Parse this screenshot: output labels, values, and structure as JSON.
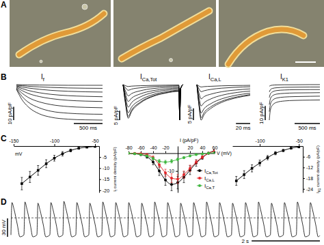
{
  "chart_data": [
    {
      "type": "image",
      "panel_label": "A"
    },
    {
      "type": "trace",
      "panel_label": "B",
      "title": [
        "I",
        {
          "sub": "f"
        }
      ],
      "color": "#000000",
      "tick_labels": false,
      "x": [
        0,
        100,
        200,
        400,
        600,
        900,
        1200,
        1500
      ],
      "series": [
        {
          "values": [
            -0.5,
            -0.6,
            -0.7,
            -0.8,
            -0.9,
            -1,
            -1,
            -1
          ]
        },
        {
          "values": [
            -1,
            -1.3,
            -1.7,
            -2.2,
            -2.6,
            -3,
            -3.2,
            -3.3
          ]
        },
        {
          "values": [
            -1.5,
            -2.3,
            -3,
            -4,
            -4.8,
            -5.5,
            -5.9,
            -6.1
          ]
        },
        {
          "values": [
            -2,
            -3.5,
            -4.8,
            -6.6,
            -7.8,
            -8.8,
            -9.3,
            -9.6
          ]
        },
        {
          "values": [
            -2.5,
            -5,
            -7,
            -9.5,
            -11,
            -12.3,
            -12.9,
            -13.2
          ]
        },
        {
          "values": [
            -3,
            -7,
            -10,
            -13.5,
            -15.5,
            -17,
            -17.6,
            -17.9
          ]
        },
        {
          "values": [
            -3.5,
            -9.5,
            -13.5,
            -18,
            -20.5,
            -22,
            -22.6,
            -22.8
          ]
        },
        {
          "values": [
            -4,
            -12,
            -17,
            -22.5,
            -25,
            -26.5,
            -27,
            -27.2
          ]
        }
      ],
      "scale_bars": {
        "y": {
          "value": 10,
          "label": "10 pA/pF"
        },
        "x": {
          "value": 500,
          "label": "500 ms"
        }
      }
    },
    {
      "type": "trace",
      "title": [
        "I",
        {
          "sub": "Ca,Tot"
        }
      ],
      "color": "#000000",
      "tick_labels": false,
      "x": [
        0,
        3,
        6,
        10,
        20,
        35,
        50,
        65,
        66,
        67,
        70
      ],
      "series": [
        {
          "values": [
            0,
            -0.6,
            -1,
            -0.8,
            -0.6,
            -0.4,
            -0.3,
            -0.2,
            -19,
            -2,
            0
          ]
        },
        {
          "values": [
            0,
            -1.8,
            -3,
            -2.4,
            -1.7,
            -1.1,
            -0.8,
            -0.6,
            -19,
            -2,
            0
          ]
        },
        {
          "values": [
            0,
            -3.6,
            -6,
            -4.8,
            -3.3,
            -2.1,
            -1.5,
            -1.2,
            -19,
            -2,
            0
          ]
        },
        {
          "values": [
            0,
            -5.4,
            -9,
            -7.2,
            -5,
            -3.2,
            -2.3,
            -1.8,
            -19,
            -2,
            0
          ]
        },
        {
          "values": [
            0,
            -7.2,
            -12,
            -9.6,
            -6.6,
            -4.2,
            -3,
            -2.4,
            -19,
            -2,
            0
          ]
        },
        {
          "values": [
            0,
            -9,
            -15,
            -12,
            -8.3,
            -5.3,
            -3.8,
            -3,
            -19,
            -2,
            0
          ]
        },
        {
          "values": [
            0,
            -10.2,
            -17,
            -13.6,
            -9.4,
            -6,
            -4.3,
            -3.4,
            -19,
            -2,
            0
          ]
        },
        {
          "values": [
            0,
            -10.8,
            -18,
            -14.4,
            -9.9,
            -6.3,
            -4.5,
            -3.6,
            -19,
            -2,
            0
          ]
        }
      ],
      "scale_bars": {
        "y": {
          "value": 5,
          "label": "5 pA/pF"
        }
      }
    },
    {
      "type": "trace",
      "title": [
        "I",
        {
          "sub": "Ca,L"
        }
      ],
      "color": "#000000",
      "tick_labels": false,
      "x": [
        0,
        3,
        6,
        10,
        20,
        35,
        50,
        65,
        75
      ],
      "series": [
        {
          "values": [
            0,
            -0.6,
            -1,
            -0.85,
            -0.7,
            -0.5,
            -0.4,
            -0.35,
            -0.3
          ]
        },
        {
          "values": [
            0,
            -1.8,
            -3,
            -2.6,
            -2,
            -1.5,
            -1.2,
            -1,
            -0.9
          ]
        },
        {
          "values": [
            0,
            -3.6,
            -6,
            -5.1,
            -4,
            -3,
            -2.4,
            -2,
            -1.8
          ]
        },
        {
          "values": [
            0,
            -5.4,
            -9,
            -7.7,
            -6,
            -4.5,
            -3.6,
            -3,
            -2.7
          ]
        },
        {
          "values": [
            0,
            -7.2,
            -12,
            -10.2,
            -8,
            -6,
            -4.8,
            -4,
            -3.6
          ]
        },
        {
          "values": [
            0,
            -8.4,
            -14,
            -11.9,
            -9.3,
            -7,
            -5.6,
            -4.7,
            -4.2
          ]
        },
        {
          "values": [
            0,
            -9,
            -15,
            -12.8,
            -10,
            -7.5,
            -6,
            -5,
            -4.5
          ]
        }
      ],
      "scale_bars": {
        "y": {
          "value": 5,
          "label": "5 pA/pF"
        },
        "x": {
          "value": 20,
          "label": "20 ms"
        }
      }
    },
    {
      "type": "trace",
      "title": [
        "I",
        {
          "sub": "K1"
        }
      ],
      "color": "#000000",
      "tick_labels": false,
      "x": [
        0,
        20,
        60,
        150,
        300,
        500,
        800,
        1000
      ],
      "series": [
        {
          "values": [
            -2,
            -1.5,
            -1.2,
            -1,
            -0.9,
            -0.9,
            -0.8,
            -0.8
          ]
        },
        {
          "values": [
            -6,
            -4.5,
            -3.5,
            -3,
            -2.7,
            -2.6,
            -2.5,
            -2.5
          ]
        },
        {
          "values": [
            -10,
            -7.5,
            -6,
            -5,
            -4.6,
            -4.4,
            -4.3,
            -4.3
          ]
        },
        {
          "values": [
            -15,
            -11,
            -8.8,
            -7.5,
            -7,
            -6.7,
            -6.6,
            -6.5
          ]
        },
        {
          "values": [
            -20,
            -15,
            -12,
            -10.3,
            -9.6,
            -9.3,
            -9.1,
            -9
          ]
        },
        {
          "values": [
            -26,
            -19,
            -15.5,
            -13.3,
            -12.4,
            -12,
            -11.8,
            -11.7
          ]
        }
      ],
      "scale_bars": {
        "y": {
          "value": 10,
          "label": "10 pA/pF"
        },
        "x": {
          "value": 500,
          "label": "500 ms"
        }
      }
    },
    {
      "type": "line",
      "panel_label": "C",
      "x": [
        -140,
        -130,
        -120,
        -110,
        -100,
        -90,
        -80,
        -70,
        -60,
        -50
      ],
      "series": [
        {
          "color": "#000000",
          "marker": "square",
          "values": [
            -17,
            -14,
            -11,
            -8,
            -5.5,
            -3.5,
            -2,
            -1,
            -0.5,
            -0.2
          ],
          "errors": [
            2.8,
            2.5,
            2.2,
            1.8,
            1.3,
            1,
            0.6,
            0.4,
            0.3,
            0.2
          ]
        }
      ],
      "xlim": [
        -150,
        -45
      ],
      "ylim": [
        -21,
        0
      ],
      "xticks": [
        -150,
        -100,
        -50
      ],
      "yticks": [
        -20,
        -15,
        -10,
        -5
      ],
      "xlabel": "mV",
      "ylabel": [
        "I",
        {
          "sub": "f"
        },
        " current density (pA/pF)"
      ]
    },
    {
      "type": "line",
      "x": [
        -80,
        -70,
        -60,
        -50,
        -40,
        -30,
        -20,
        -10,
        0,
        10,
        20,
        30,
        40,
        50,
        60
      ],
      "series": [
        {
          "name": [
            "I",
            {
              "sub": "Ca,Tot"
            }
          ],
          "color": "#000000",
          "marker": "circle",
          "values": [
            0,
            -0.3,
            -0.8,
            -2,
            -5,
            -10,
            -15,
            -17.5,
            -16.5,
            -13.5,
            -9.5,
            -5.5,
            -2.5,
            0,
            1.5
          ],
          "errors": [
            0.2,
            0.3,
            0.5,
            0.8,
            1.5,
            2.5,
            3,
            3.5,
            3.5,
            3,
            2.5,
            1.8,
            1,
            0.5,
            0.5
          ]
        },
        {
          "name": [
            "I",
            {
              "sub": "Ca,L"
            }
          ],
          "color": "#e3262a",
          "marker": "circle",
          "values": [
            0,
            -0.1,
            -0.3,
            -0.8,
            -2.5,
            -6.5,
            -11,
            -14,
            -14.5,
            -12,
            -8.5,
            -5,
            -2.2,
            0,
            1.2
          ],
          "errors": [
            0.2,
            0.2,
            0.3,
            0.5,
            1,
            1.5,
            2,
            2.5,
            2.5,
            2,
            1.8,
            1.2,
            0.8,
            0.4,
            0.4
          ]
        },
        {
          "name": [
            "I",
            {
              "sub": "Ca,T"
            }
          ],
          "color": "#3fb63f",
          "marker": "circle",
          "values": [
            0,
            -0.3,
            -0.8,
            -1.5,
            -3,
            -4.5,
            -5,
            -4.5,
            -3.5,
            -2.5,
            -1.5,
            -0.8,
            -0.4,
            0,
            0.3
          ],
          "errors": [
            0.2,
            0.3,
            0.4,
            0.6,
            0.8,
            1,
            1,
            1,
            0.8,
            0.6,
            0.5,
            0.4,
            0.3,
            0.2,
            0.2
          ]
        }
      ],
      "xlim": [
        -80,
        60
      ],
      "ylim": [
        -22,
        4
      ],
      "xticks": [
        -80,
        -60,
        -40,
        -20,
        20,
        40,
        60
      ],
      "yticks": [
        -10
      ],
      "xlabel": "V (mV)",
      "ylabel": "I (pA/pF)",
      "legend": "lower right"
    },
    {
      "type": "line",
      "x": [
        -130,
        -120,
        -110,
        -100,
        -90,
        -80,
        -70,
        -60,
        -50
      ],
      "series": [
        {
          "color": "#000000",
          "marker": "square",
          "values": [
            -19.5,
            -16,
            -12.5,
            -9.5,
            -6.5,
            -4,
            -2.5,
            -1.2,
            -0.5
          ],
          "errors": [
            2.5,
            2.2,
            2,
            1.6,
            1.2,
            0.9,
            0.6,
            0.4,
            0.3
          ]
        }
      ],
      "xlim": [
        -135,
        -45
      ],
      "ylim": [
        -26,
        0
      ],
      "xticks": [
        -100,
        -50
      ],
      "yticks": [
        -24,
        -18,
        -12,
        -6
      ],
      "ylabel": [
        "I",
        {
          "sub": "K1"
        },
        " current density (pA/pF)"
      ]
    },
    {
      "type": "line",
      "panel_label": "D",
      "tick_labels": false,
      "reference_y": 0,
      "x": [
        0.05,
        0.08,
        0.14,
        0.24,
        0.31,
        0.43,
        0.46,
        0.52,
        0.62,
        0.69,
        0.81,
        0.84,
        0.9,
        1.0,
        1.07,
        1.19,
        1.22,
        1.28,
        1.38,
        1.45,
        1.57,
        1.6,
        1.66,
        1.76,
        1.83,
        1.95,
        1.98,
        2.04,
        2.14,
        2.21,
        2.33,
        2.36,
        2.42,
        2.52,
        2.59,
        2.71,
        2.74,
        2.8,
        2.9,
        2.97,
        3.09,
        3.12,
        3.18,
        3.28,
        3.35,
        3.47,
        3.5,
        3.56,
        3.66,
        3.73,
        3.85,
        3.88,
        3.94,
        4.04,
        4.11,
        4.23,
        4.26,
        4.32,
        4.42,
        4.49,
        4.61,
        4.64,
        4.7,
        4.8,
        4.87,
        4.99,
        5.02,
        5.08,
        5.18,
        5.25,
        5.37,
        5.4,
        5.46,
        5.56,
        5.63,
        5.75,
        5.78,
        5.84,
        5.94,
        6.01,
        6.13,
        6.16,
        6.22,
        6.32,
        6.39,
        6.51,
        6.54,
        6.6,
        6.7,
        6.77,
        6.89,
        6.92,
        6.98,
        7.08,
        7.15,
        7.27,
        7.3,
        7.36,
        7.46,
        7.53,
        7.65,
        7.68,
        7.74,
        7.84,
        7.91,
        8.03,
        8.06,
        8.12,
        8.22,
        8.29,
        8.41,
        8.44,
        8.5,
        8.6,
        8.67,
        8.79,
        8.82,
        8.88,
        8.98,
        9.05,
        9.1
      ],
      "series": [
        {
          "color": "#000000",
          "values": [
            -28,
            25,
            14,
            -12,
            -31,
            -28,
            26,
            14,
            -12,
            -31,
            -28,
            24,
            13,
            -12,
            -31,
            -28,
            25,
            14,
            -12,
            -31,
            -28,
            27,
            15,
            -11,
            -31,
            -28,
            25,
            14,
            -12,
            -31,
            -28,
            24,
            13,
            -12,
            -31,
            -28,
            26,
            14,
            -12,
            -31,
            -28,
            25,
            14,
            -12,
            -31,
            -28,
            25,
            14,
            -12,
            -31,
            -28,
            24,
            13,
            -12,
            -31,
            -28,
            26,
            14,
            -12,
            -31,
            -28,
            25,
            14,
            -12,
            -31,
            -28,
            24,
            13,
            -12,
            -31,
            -28,
            25,
            14,
            -12,
            -31,
            -28,
            26,
            14,
            -12,
            -31,
            -28,
            25,
            14,
            -12,
            -31,
            -28,
            24,
            13,
            -12,
            -31,
            -28,
            25,
            14,
            -12,
            -31,
            -28,
            26,
            14,
            -12,
            -31,
            -28,
            24,
            13,
            -12,
            -31,
            -28,
            25,
            14,
            -12,
            -31,
            -28,
            26,
            14,
            -12,
            -31,
            -28,
            25,
            14,
            -12,
            -31,
            -29
          ]
        }
      ],
      "scale_bars": {
        "y": {
          "value": 30,
          "label": "30 mV"
        },
        "x": {
          "value": 2,
          "label": "2 s"
        }
      }
    }
  ]
}
